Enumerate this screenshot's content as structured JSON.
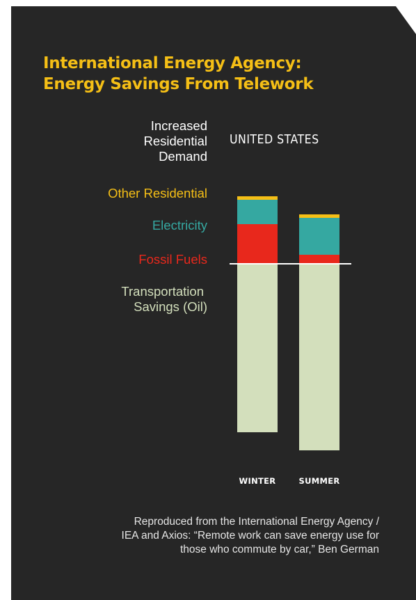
{
  "title": {
    "line1": "International Energy Agency:",
    "line2": "Energy Savings From Telework"
  },
  "legend": {
    "increased_line1": "Increased",
    "increased_line2": "Residential",
    "increased_line3": "Demand",
    "other_residential": "Other Residential",
    "electricity": "Electricity",
    "fossil_fuels": "Fossil Fuels",
    "transport_line1": "Transportation",
    "transport_line2": "Savings (Oil)"
  },
  "colors": {
    "background": "#262626",
    "title": "#f5bf16",
    "other_residential": "#f5bf16",
    "electricity": "#35a8a1",
    "fossil_fuels": "#e8281c",
    "transportation": "#d3dfbc",
    "baseline": "#ffffff"
  },
  "chart_data": {
    "type": "bar",
    "stacked": true,
    "diverging": true,
    "title": "UNITED STATES",
    "categories": [
      "WINTER",
      "SUMMER"
    ],
    "series": [
      {
        "name": "Other Residential",
        "group": "Increased Residential Demand",
        "values": [
          5,
          5
        ]
      },
      {
        "name": "Electricity",
        "group": "Increased Residential Demand",
        "values": [
          35,
          53
        ]
      },
      {
        "name": "Fossil Fuels",
        "group": "Increased Residential Demand",
        "values": [
          57,
          13
        ]
      },
      {
        "name": "Transportation Savings (Oil)",
        "values": [
          -242,
          -268
        ]
      }
    ],
    "ylim": [
      -270,
      100
    ],
    "grid": false,
    "baseline": 0
  },
  "source": {
    "line1": "Reproduced from the International Energy Agency /",
    "line2": "IEA and Axios: “Remote work can save energy use for",
    "line3": "those who commute by car,” Ben German"
  }
}
